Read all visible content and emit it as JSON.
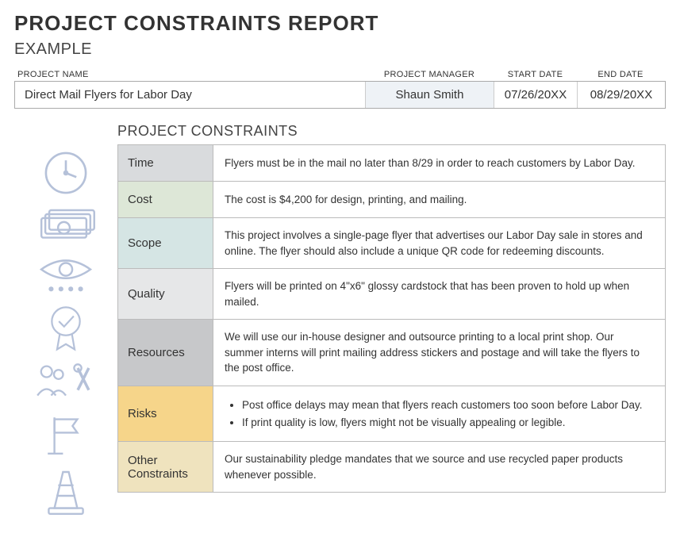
{
  "title": "PROJECT CONSTRAINTS REPORT",
  "subtitle": "EXAMPLE",
  "info": {
    "labels": {
      "name": "PROJECT NAME",
      "manager": "PROJECT MANAGER",
      "start": "START DATE",
      "end": "END DATE"
    },
    "values": {
      "name": "Direct Mail Flyers for Labor Day",
      "manager": "Shaun Smith",
      "start": "07/26/20XX",
      "end": "08/29/20XX"
    }
  },
  "constraints_heading": "PROJECT CONSTRAINTS",
  "constraints": {
    "rows": [
      {
        "label": "Time",
        "bg": "#d9dbdd",
        "body": "Flyers must be in the mail no later than 8/29 in order to reach customers by Labor Day."
      },
      {
        "label": "Cost",
        "bg": "#dde7d7",
        "body": "The cost is $4,200 for design, printing, and mailing."
      },
      {
        "label": "Scope",
        "bg": "#d5e5e4",
        "body": "This project involves a single-page flyer that advertises our Labor Day sale in stores and online. The flyer should also include a unique QR code for redeeming discounts."
      },
      {
        "label": "Quality",
        "bg": "#e6e7e8",
        "body": "Flyers will be printed on 4\"x6\" glossy cardstock that has been proven to hold up when mailed."
      },
      {
        "label": "Resources",
        "bg": "#c7c8ca",
        "body": "We will use our in-house designer and outsource printing to a local print shop. Our summer interns will print mailing address stickers and postage and will take the flyers to the post office."
      },
      {
        "label": "Risks",
        "bg": "#f6d58a",
        "bullets": [
          "Post office delays may mean that flyers reach customers too soon before Labor Day.",
          "If print quality is low, flyers might not be visually appealing or legible."
        ]
      },
      {
        "label": "Other Constraints",
        "bg": "#efe3be",
        "body": "Our sustainability pledge mandates that we source and use recycled paper products whenever possible."
      }
    ]
  },
  "icon_stroke": "#b5c1d9",
  "page_bg": "#ffffff"
}
